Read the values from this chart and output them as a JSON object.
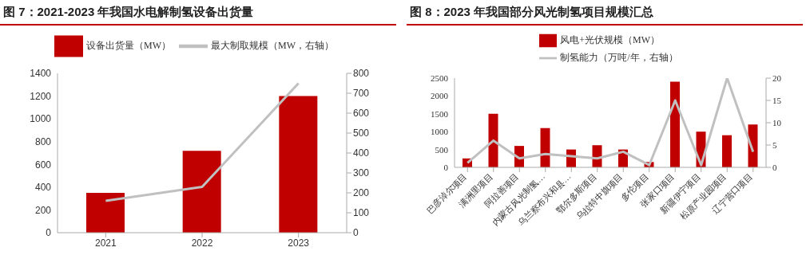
{
  "chart_data": [
    {
      "type": "bar",
      "title": "图 7：2021-2023 年我国水电解制氢设备出货量",
      "categories": [
        "2021",
        "2022",
        "2023"
      ],
      "series": [
        {
          "name": "设备出货量（MW）",
          "color": "#c00000",
          "values": [
            350,
            720,
            1200
          ]
        },
        {
          "type": "line",
          "axis": "y2",
          "name": "最大制取规模（MW，右轴）",
          "color": "#c0c0c0",
          "values": [
            160,
            230,
            750
          ]
        }
      ],
      "ylim": [
        0,
        1400
      ],
      "yticks": [
        0,
        200,
        400,
        600,
        800,
        1000,
        1200,
        1400
      ],
      "y2lim": [
        0,
        800
      ],
      "y2ticks": [
        0,
        100,
        200,
        300,
        400,
        500,
        600,
        700,
        800
      ],
      "grid": false,
      "legend": "top",
      "marker": "none"
    },
    {
      "type": "bar",
      "title": "图 8：2023 年我国部分风光制氢项目规模汇总",
      "categories": [
        "巴彦淖尔项目",
        "满洲里项目",
        "阿拉善项目",
        "内蒙古风光制氢…",
        "乌兰察布兴和县…",
        "鄂尔多斯项目",
        "乌拉特中旗项目",
        "多伦项目",
        "张家口项目",
        "新疆伊宁项目",
        "松原产业园项目",
        "辽宁营口项目"
      ],
      "series": [
        {
          "name": "风电+光伏规模（MW）",
          "color": "#c00000",
          "values": [
            250,
            1500,
            600,
            1100,
            500,
            620,
            500,
            150,
            2400,
            1000,
            900,
            1200
          ]
        },
        {
          "type": "line",
          "axis": "y2",
          "name": "制氢能力（万吨/年，右轴）",
          "color": "#c0c0c0",
          "values": [
            1,
            6,
            2,
            3,
            2.5,
            2,
            3.5,
            0.5,
            15,
            0.5,
            20,
            3.5
          ]
        }
      ],
      "ylim": [
        0,
        2500
      ],
      "yticks": [
        0,
        500,
        1000,
        1500,
        2000,
        2500
      ],
      "y2lim": [
        0,
        20
      ],
      "y2ticks": [
        0,
        5,
        10,
        15,
        20
      ],
      "grid": false,
      "legend": "top",
      "marker": "none"
    }
  ]
}
